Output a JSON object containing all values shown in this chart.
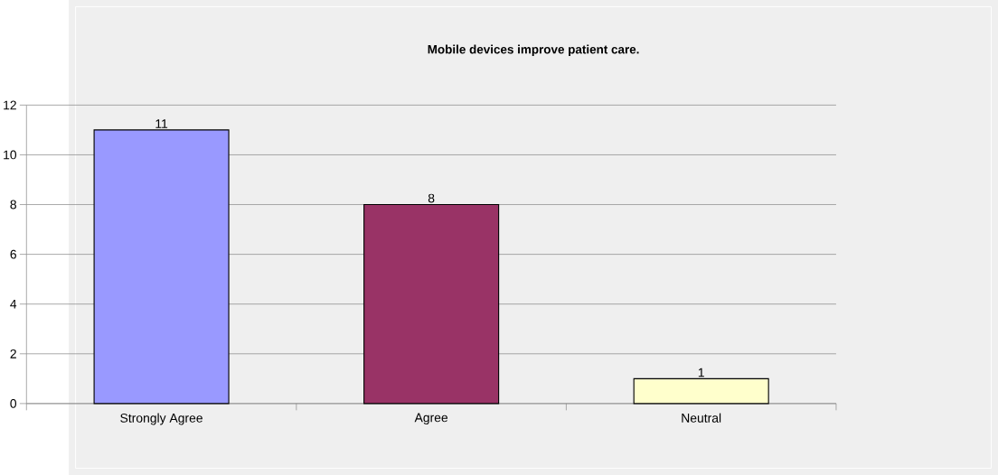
{
  "chart_data": {
    "type": "bar",
    "title": "Mobile devices improve patient care.",
    "categories": [
      "Strongly Agree",
      "Agree",
      "Neutral"
    ],
    "values": [
      11,
      8,
      1
    ],
    "colors": [
      "#9999ff",
      "#993366",
      "#ffffcc"
    ],
    "ylim": [
      0,
      12
    ],
    "yticks": [
      0,
      2,
      4,
      6,
      8,
      10,
      12
    ],
    "grid": "y",
    "data_labels": true
  }
}
